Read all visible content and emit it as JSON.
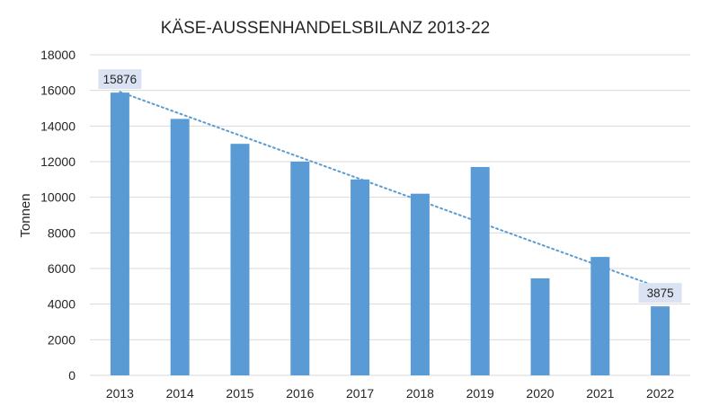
{
  "chart_data": {
    "type": "bar",
    "title": "KÄSE-AUSSENHANDELSBILANZ 2013-22",
    "xlabel": "",
    "ylabel": "Tonnen",
    "categories": [
      "2013",
      "2014",
      "2015",
      "2016",
      "2017",
      "2018",
      "2019",
      "2020",
      "2021",
      "2022"
    ],
    "values": [
      15876,
      14400,
      13000,
      12000,
      11000,
      10200,
      11700,
      5450,
      6650,
      3875
    ],
    "ylim": [
      0,
      18000
    ],
    "yticks": [
      0,
      2000,
      4000,
      6000,
      8000,
      10000,
      12000,
      14000,
      16000,
      18000
    ],
    "grid": true,
    "trendline": {
      "type": "linear",
      "style": "dotted"
    },
    "data_labels": [
      {
        "category": "2013",
        "text": "15876"
      },
      {
        "category": "2022",
        "text": "3875"
      }
    ],
    "colors": {
      "bar": "#5b9bd5",
      "trend": "#5b9bd5",
      "grid": "#d9d9d9",
      "label_bg": "#dae3f3"
    }
  }
}
